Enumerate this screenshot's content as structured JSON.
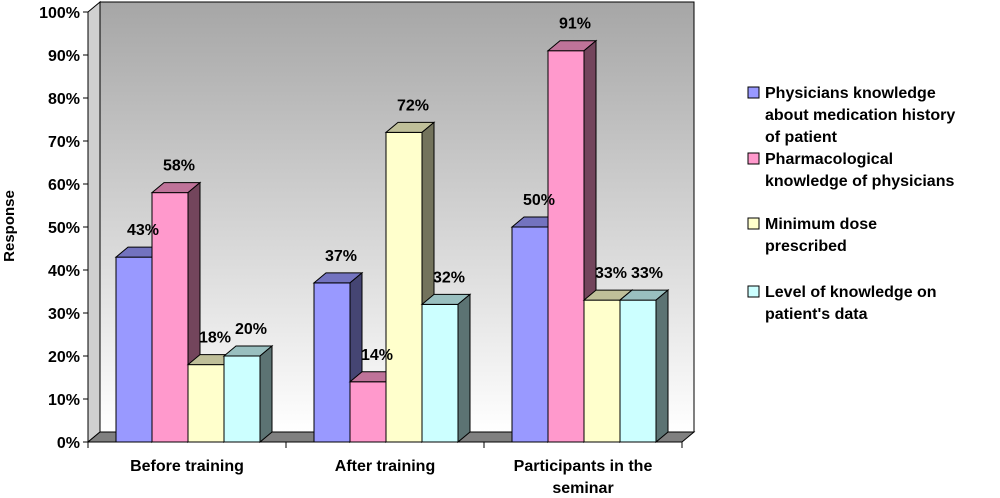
{
  "chart_data": {
    "type": "bar",
    "ylabel": "Response",
    "ylim": [
      0,
      100
    ],
    "y_ticks": [
      "0%",
      "10%",
      "20%",
      "30%",
      "40%",
      "50%",
      "60%",
      "70%",
      "80%",
      "90%",
      "100%"
    ],
    "categories": [
      [
        "Before training"
      ],
      [
        "After training"
      ],
      [
        "Participants in the",
        "seminar"
      ]
    ],
    "series": [
      {
        "name": [
          "Physicians knowledge",
          "about medication history",
          "of patient"
        ],
        "values": [
          43,
          37,
          50
        ],
        "labels": [
          "43%",
          "37%",
          "50%"
        ],
        "color": "#9999ff"
      },
      {
        "name": [
          "Pharmacological",
          "knowledge of physicians"
        ],
        "values": [
          58,
          14,
          91
        ],
        "labels": [
          "58%",
          "14%",
          "91%"
        ],
        "color": "#ff99cc"
      },
      {
        "name": [
          "Minimum dose",
          "prescribed"
        ],
        "values": [
          18,
          72,
          33
        ],
        "labels": [
          "18%",
          "72%",
          "33%"
        ],
        "color": "#ffffcc"
      },
      {
        "name": [
          "Level of knowledge on",
          "patient's data"
        ],
        "values": [
          20,
          32,
          33
        ],
        "labels": [
          "20%",
          "32%",
          "33%"
        ],
        "color": "#ccffff"
      }
    ],
    "grid": false,
    "legend_position": "right",
    "three_d": true
  }
}
